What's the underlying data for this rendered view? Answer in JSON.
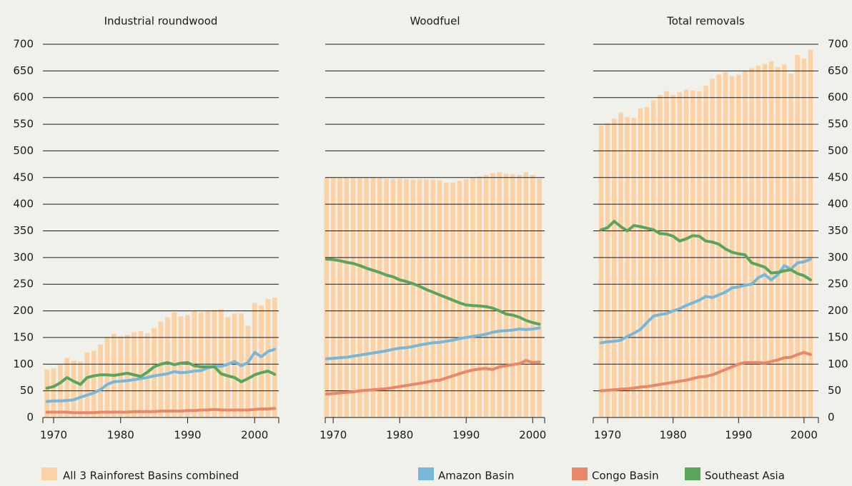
{
  "chart_data": [
    {
      "type": "combo",
      "title": "Industrial roundwood",
      "ytick_labels": "left",
      "xlim": [
        1968.4,
        2003.6
      ],
      "xticks": [
        1970,
        1980,
        1990,
        2000
      ],
      "ylim": [
        0,
        700
      ],
      "yticks": [
        0,
        50,
        100,
        150,
        200,
        250,
        300,
        350,
        400,
        450,
        500,
        550,
        600,
        650,
        700
      ],
      "grid": true,
      "x": [
        1969,
        1970,
        1971,
        1972,
        1973,
        1974,
        1975,
        1976,
        1977,
        1978,
        1979,
        1980,
        1981,
        1982,
        1983,
        1984,
        1985,
        1986,
        1987,
        1988,
        1989,
        1990,
        1991,
        1992,
        1993,
        1994,
        1995,
        1996,
        1997,
        1998,
        1999,
        2000,
        2001,
        2002,
        2003
      ],
      "series": [
        {
          "name": "All 3 Rainforest Basins combined",
          "kind": "bar",
          "color": "#fcd2a4",
          "values": [
            90,
            92,
            100,
            112,
            107,
            105,
            122,
            125,
            137,
            150,
            157,
            152,
            155,
            160,
            162,
            158,
            168,
            180,
            188,
            197,
            190,
            192,
            200,
            197,
            200,
            202,
            203,
            188,
            195,
            195,
            172,
            215,
            210,
            222,
            225
          ]
        },
        {
          "name": "Amazon Basin",
          "kind": "line",
          "color": "#77b7d9",
          "values": [
            30,
            31,
            31,
            32,
            33,
            38,
            42,
            46,
            52,
            62,
            67,
            68,
            69,
            71,
            73,
            75,
            78,
            80,
            82,
            86,
            84,
            85,
            87,
            88,
            93,
            96,
            96,
            100,
            105,
            97,
            103,
            122,
            114,
            124,
            128
          ]
        },
        {
          "name": "Congo Basin",
          "kind": "line",
          "color": "#e8876a",
          "values": [
            10,
            10,
            10,
            10,
            9,
            9,
            9,
            9,
            10,
            10,
            10,
            10,
            10,
            11,
            11,
            11,
            11,
            12,
            12,
            12,
            12,
            13,
            13,
            14,
            14,
            15,
            14,
            14,
            14,
            14,
            14,
            15,
            16,
            16,
            17
          ]
        },
        {
          "name": "Southeast Asia",
          "kind": "line",
          "color": "#5aa55c",
          "values": [
            55,
            58,
            65,
            75,
            68,
            62,
            75,
            78,
            80,
            80,
            79,
            81,
            83,
            80,
            77,
            85,
            95,
            100,
            103,
            99,
            102,
            103,
            97,
            95,
            95,
            95,
            82,
            78,
            75,
            67,
            73,
            80,
            84,
            87,
            81
          ]
        }
      ]
    },
    {
      "type": "combo",
      "title": "Woodfuel",
      "ytick_labels": "none",
      "xlim": [
        1968.8,
        2001.8
      ],
      "xticks": [
        1970,
        1980,
        1990,
        2000
      ],
      "ylim": [
        0,
        700
      ],
      "yticks": [
        0,
        50,
        100,
        150,
        200,
        250,
        300,
        350,
        400,
        450,
        500,
        550,
        600,
        650,
        700
      ],
      "grid": true,
      "x": [
        1969,
        1970,
        1971,
        1972,
        1973,
        1974,
        1975,
        1976,
        1977,
        1978,
        1979,
        1980,
        1981,
        1982,
        1983,
        1984,
        1985,
        1986,
        1987,
        1988,
        1989,
        1990,
        1991,
        1992,
        1993,
        1994,
        1995,
        1996,
        1997,
        1998,
        1999,
        2000,
        2001
      ],
      "series": [
        {
          "kind": "bar",
          "color": "#fcd2a4",
          "values": [
            450,
            450,
            450,
            450,
            450,
            450,
            450,
            450,
            450,
            448,
            447,
            448,
            447,
            446,
            447,
            447,
            446,
            445,
            440,
            441,
            444,
            447,
            450,
            452,
            455,
            458,
            460,
            457,
            456,
            455,
            460,
            455,
            448
          ]
        },
        {
          "kind": "line",
          "color": "#77b7d9",
          "values": [
            110,
            111,
            112,
            113,
            115,
            117,
            119,
            121,
            123,
            125,
            128,
            130,
            131,
            133,
            136,
            138,
            140,
            141,
            143,
            145,
            148,
            150,
            152,
            154,
            156,
            160,
            162,
            163,
            164,
            166,
            165,
            166,
            168
          ]
        },
        {
          "kind": "line",
          "color": "#e8876a",
          "values": [
            44,
            45,
            46,
            47,
            48,
            50,
            51,
            52,
            53,
            54,
            56,
            58,
            60,
            62,
            64,
            66,
            69,
            70,
            74,
            78,
            82,
            86,
            89,
            91,
            92,
            90,
            95,
            97,
            99,
            101,
            107,
            103,
            104
          ]
        },
        {
          "kind": "line",
          "color": "#5aa55c",
          "values": [
            297,
            296,
            294,
            291,
            289,
            285,
            280,
            276,
            272,
            267,
            264,
            258,
            255,
            251,
            246,
            240,
            235,
            230,
            225,
            220,
            215,
            211,
            210,
            209,
            208,
            205,
            200,
            194,
            192,
            188,
            182,
            178,
            175
          ]
        }
      ]
    },
    {
      "type": "combo",
      "title": "Total removals",
      "ytick_labels": "right",
      "xlim": [
        1967.8,
        2002.2
      ],
      "xticks": [
        1970,
        1980,
        1990,
        2000
      ],
      "ylim": [
        0,
        700
      ],
      "yticks": [
        0,
        50,
        100,
        150,
        200,
        250,
        300,
        350,
        400,
        450,
        500,
        550,
        600,
        650,
        700
      ],
      "grid": true,
      "x": [
        1969,
        1970,
        1971,
        1972,
        1973,
        1974,
        1975,
        1976,
        1977,
        1978,
        1979,
        1980,
        1981,
        1982,
        1983,
        1984,
        1985,
        1986,
        1987,
        1988,
        1989,
        1990,
        1991,
        1992,
        1993,
        1994,
        1995,
        1996,
        1997,
        1998,
        1999,
        2000,
        2001
      ],
      "series": [
        {
          "kind": "bar",
          "color": "#fcd2a4",
          "values": [
            547,
            552,
            560,
            572,
            563,
            562,
            580,
            582,
            595,
            605,
            612,
            605,
            610,
            615,
            613,
            612,
            622,
            635,
            643,
            648,
            640,
            643,
            650,
            655,
            660,
            663,
            668,
            657,
            662,
            645,
            680,
            673,
            690
          ]
        },
        {
          "kind": "line",
          "color": "#77b7d9",
          "values": [
            140,
            142,
            143,
            145,
            152,
            158,
            165,
            178,
            190,
            193,
            195,
            200,
            204,
            210,
            215,
            220,
            227,
            225,
            230,
            235,
            243,
            245,
            248,
            250,
            262,
            268,
            258,
            268,
            285,
            278,
            290,
            292,
            297
          ]
        },
        {
          "kind": "line",
          "color": "#e8876a",
          "values": [
            50,
            51,
            52,
            53,
            54,
            55,
            57,
            58,
            60,
            62,
            64,
            66,
            68,
            70,
            73,
            76,
            77,
            80,
            85,
            90,
            95,
            100,
            103,
            103,
            103,
            102,
            105,
            108,
            112,
            113,
            118,
            122,
            118
          ]
        },
        {
          "kind": "line",
          "color": "#5aa55c",
          "values": [
            352,
            356,
            368,
            358,
            350,
            360,
            358,
            355,
            352,
            345,
            344,
            340,
            331,
            335,
            341,
            340,
            331,
            329,
            325,
            316,
            310,
            307,
            305,
            290,
            286,
            282,
            271,
            272,
            275,
            277,
            270,
            266,
            258
          ]
        }
      ]
    }
  ]
}
